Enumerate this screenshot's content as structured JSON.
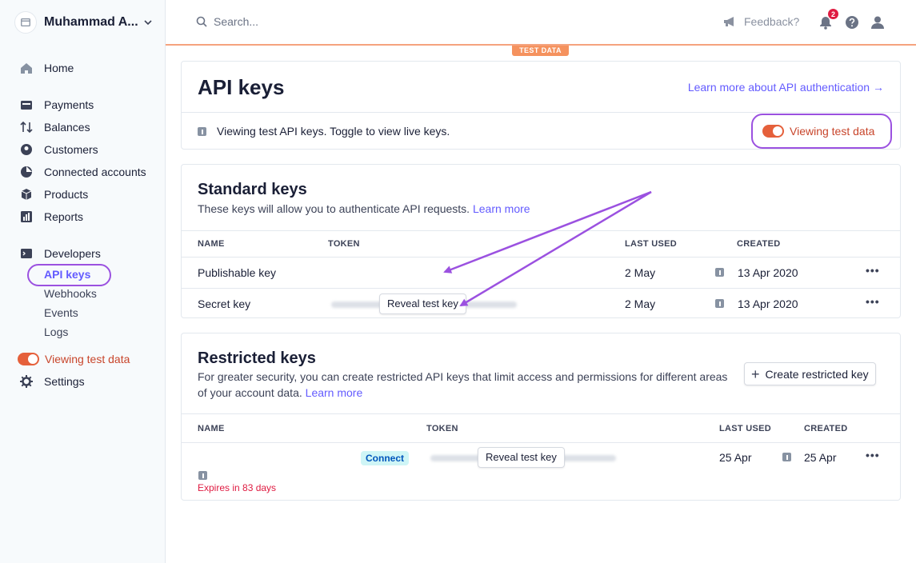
{
  "account": {
    "name": "Muhammad A..."
  },
  "sidebar": {
    "items": [
      {
        "label": "Home",
        "icon": "home-icon"
      },
      {
        "label": "Payments",
        "icon": "payments-icon"
      },
      {
        "label": "Balances",
        "icon": "balances-icon"
      },
      {
        "label": "Customers",
        "icon": "customers-icon"
      },
      {
        "label": "Connected accounts",
        "icon": "connected-accounts-icon"
      },
      {
        "label": "Products",
        "icon": "products-icon"
      },
      {
        "label": "Reports",
        "icon": "reports-icon"
      },
      {
        "label": "Developers",
        "icon": "developers-icon"
      }
    ],
    "developer_sub": [
      "API keys",
      "Webhooks",
      "Events",
      "Logs"
    ],
    "test_toggle_label": "Viewing test data",
    "settings_label": "Settings"
  },
  "topbar": {
    "search_placeholder": "Search...",
    "feedback_label": "Feedback?",
    "notification_count": "2",
    "test_data_tag": "TEST DATA"
  },
  "api_keys": {
    "title": "API keys",
    "learn_link": "Learn more about API authentication →",
    "notice": "Viewing test API keys. Toggle to view live keys.",
    "toggle_label": "Viewing test data"
  },
  "standard_keys": {
    "title": "Standard keys",
    "description": "These keys will allow you to authenticate API requests.",
    "learn_more": "Learn more",
    "columns": [
      "NAME",
      "TOKEN",
      "LAST USED",
      "CREATED"
    ],
    "rows": [
      {
        "name": "Publishable key",
        "last_used": "2 May",
        "created": "13 Apr 2020"
      },
      {
        "name": "Secret key",
        "reveal": "Reveal test key",
        "last_used": "2 May",
        "created": "13 Apr 2020"
      }
    ]
  },
  "restricted_keys": {
    "title": "Restricted keys",
    "description": "For greater security, you can create restricted API keys that limit access and permissions for different areas of your account data.",
    "learn_more": "Learn more",
    "create_button": "Create restricted key",
    "columns": [
      "NAME",
      "TOKEN",
      "LAST USED",
      "CREATED"
    ],
    "row": {
      "badge": "Connect",
      "reveal": "Reveal test key",
      "last_used": "25 Apr",
      "created": "25 Apr",
      "expires": "Expires in 83 days"
    }
  },
  "colors": {
    "accent": "#635bff",
    "test_orange": "#e5603b",
    "annotation_purple": "#9b51e0",
    "danger": "#df1b41"
  }
}
